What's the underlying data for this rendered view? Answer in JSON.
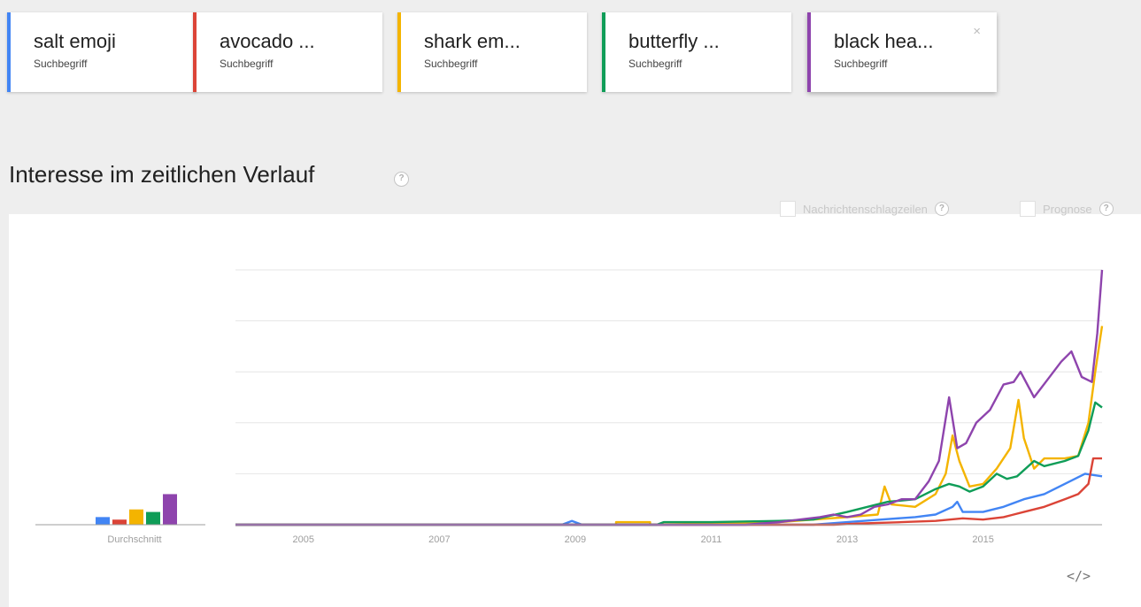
{
  "terms": [
    {
      "label": "salt emoji",
      "type": "Suchbegriff",
      "color": "#4285f4"
    },
    {
      "label": "avocado ...",
      "type": "Suchbegriff",
      "color": "#db4437"
    },
    {
      "label": "shark em...",
      "type": "Suchbegriff",
      "color": "#f4b400"
    },
    {
      "label": "butterfly ...",
      "type": "Suchbegriff",
      "color": "#0f9d58"
    },
    {
      "label": "black hea...",
      "type": "Suchbegriff",
      "color": "#8e44ad"
    }
  ],
  "close_symbol": "×",
  "section": {
    "title": "Interesse im zeitlichen Verlauf",
    "help_symbol": "?"
  },
  "options": {
    "news_label": "Nachrichtenschlagzeilen",
    "forecast_label": "Prognose",
    "help_symbol": "?"
  },
  "embed_symbol": "</>",
  "chart_data": {
    "type": "line",
    "average_label": "Durchschnitt",
    "average_values": [
      3,
      2,
      6,
      5,
      12
    ],
    "x_tick_labels": [
      "2005",
      "2007",
      "2009",
      "2011",
      "2013",
      "2015"
    ],
    "x_ticks": [
      2005,
      2007,
      2009,
      2011,
      2013,
      2015
    ],
    "xlim": [
      2004.0,
      2016.75
    ],
    "ylim": [
      0,
      100
    ],
    "y_gridlines": [
      20,
      40,
      60,
      80,
      100
    ],
    "legend": "cards-top",
    "series": [
      {
        "name": "salt emoji",
        "color": "#4285f4",
        "points": [
          [
            2004.0,
            0
          ],
          [
            2008.8,
            0
          ],
          [
            2008.95,
            1.5
          ],
          [
            2009.1,
            0
          ],
          [
            2012.5,
            0
          ],
          [
            2013.0,
            1
          ],
          [
            2013.5,
            2
          ],
          [
            2014.0,
            3
          ],
          [
            2014.3,
            4
          ],
          [
            2014.55,
            7
          ],
          [
            2014.62,
            9
          ],
          [
            2014.7,
            5
          ],
          [
            2015.0,
            5
          ],
          [
            2015.3,
            7
          ],
          [
            2015.6,
            10
          ],
          [
            2015.9,
            12
          ],
          [
            2016.2,
            16
          ],
          [
            2016.5,
            20
          ],
          [
            2016.75,
            19
          ]
        ]
      },
      {
        "name": "avocado emoji",
        "color": "#db4437",
        "points": [
          [
            2004.0,
            0
          ],
          [
            2012.8,
            0
          ],
          [
            2013.2,
            0.5
          ],
          [
            2013.8,
            1
          ],
          [
            2014.3,
            1.5
          ],
          [
            2014.7,
            2.5
          ],
          [
            2015.0,
            2
          ],
          [
            2015.3,
            3
          ],
          [
            2015.6,
            5
          ],
          [
            2015.9,
            7
          ],
          [
            2016.2,
            10
          ],
          [
            2016.4,
            12
          ],
          [
            2016.55,
            16
          ],
          [
            2016.62,
            26
          ],
          [
            2016.75,
            26
          ]
        ]
      },
      {
        "name": "shark emoji",
        "color": "#f4b400",
        "points": [
          [
            2004.0,
            0
          ],
          [
            2009.6,
            0
          ],
          [
            2009.6,
            1
          ],
          [
            2010.1,
            1
          ],
          [
            2010.1,
            0
          ],
          [
            2011.0,
            0.5
          ],
          [
            2012.0,
            1
          ],
          [
            2012.5,
            2
          ],
          [
            2013.0,
            3
          ],
          [
            2013.45,
            4
          ],
          [
            2013.55,
            15
          ],
          [
            2013.65,
            8
          ],
          [
            2014.0,
            7
          ],
          [
            2014.3,
            12
          ],
          [
            2014.45,
            20
          ],
          [
            2014.55,
            35
          ],
          [
            2014.65,
            25
          ],
          [
            2014.8,
            15
          ],
          [
            2015.0,
            16
          ],
          [
            2015.2,
            22
          ],
          [
            2015.4,
            30
          ],
          [
            2015.52,
            49
          ],
          [
            2015.6,
            34
          ],
          [
            2015.75,
            22
          ],
          [
            2015.9,
            26
          ],
          [
            2016.2,
            26
          ],
          [
            2016.4,
            27
          ],
          [
            2016.55,
            40
          ],
          [
            2016.65,
            60
          ],
          [
            2016.75,
            78
          ]
        ]
      },
      {
        "name": "butterfly emoji",
        "color": "#0f9d58",
        "points": [
          [
            2004.0,
            0
          ],
          [
            2010.2,
            0
          ],
          [
            2010.3,
            1
          ],
          [
            2011.0,
            1
          ],
          [
            2012.0,
            1.5
          ],
          [
            2012.5,
            2
          ],
          [
            2013.0,
            5
          ],
          [
            2013.3,
            7
          ],
          [
            2013.6,
            9
          ],
          [
            2014.0,
            10
          ],
          [
            2014.3,
            14
          ],
          [
            2014.5,
            16
          ],
          [
            2014.65,
            15
          ],
          [
            2014.8,
            13
          ],
          [
            2015.0,
            15
          ],
          [
            2015.2,
            20
          ],
          [
            2015.35,
            18
          ],
          [
            2015.5,
            19
          ],
          [
            2015.75,
            25
          ],
          [
            2015.9,
            23
          ],
          [
            2016.2,
            25
          ],
          [
            2016.4,
            27
          ],
          [
            2016.55,
            37
          ],
          [
            2016.65,
            48
          ],
          [
            2016.75,
            46
          ]
        ]
      },
      {
        "name": "black heart emoji",
        "color": "#8e44ad",
        "points": [
          [
            2004.0,
            0
          ],
          [
            2011.5,
            0
          ],
          [
            2012.0,
            1
          ],
          [
            2012.3,
            2
          ],
          [
            2012.6,
            3
          ],
          [
            2012.8,
            4
          ],
          [
            2013.0,
            3
          ],
          [
            2013.2,
            4
          ],
          [
            2013.4,
            7
          ],
          [
            2013.6,
            8
          ],
          [
            2013.8,
            10
          ],
          [
            2014.0,
            10
          ],
          [
            2014.2,
            17
          ],
          [
            2014.35,
            25
          ],
          [
            2014.5,
            50
          ],
          [
            2014.62,
            30
          ],
          [
            2014.75,
            32
          ],
          [
            2014.9,
            40
          ],
          [
            2015.1,
            45
          ],
          [
            2015.3,
            55
          ],
          [
            2015.45,
            56
          ],
          [
            2015.55,
            60
          ],
          [
            2015.75,
            50
          ],
          [
            2015.95,
            57
          ],
          [
            2016.15,
            64
          ],
          [
            2016.3,
            68
          ],
          [
            2016.45,
            58
          ],
          [
            2016.6,
            56
          ],
          [
            2016.68,
            75
          ],
          [
            2016.75,
            100
          ]
        ]
      }
    ]
  }
}
